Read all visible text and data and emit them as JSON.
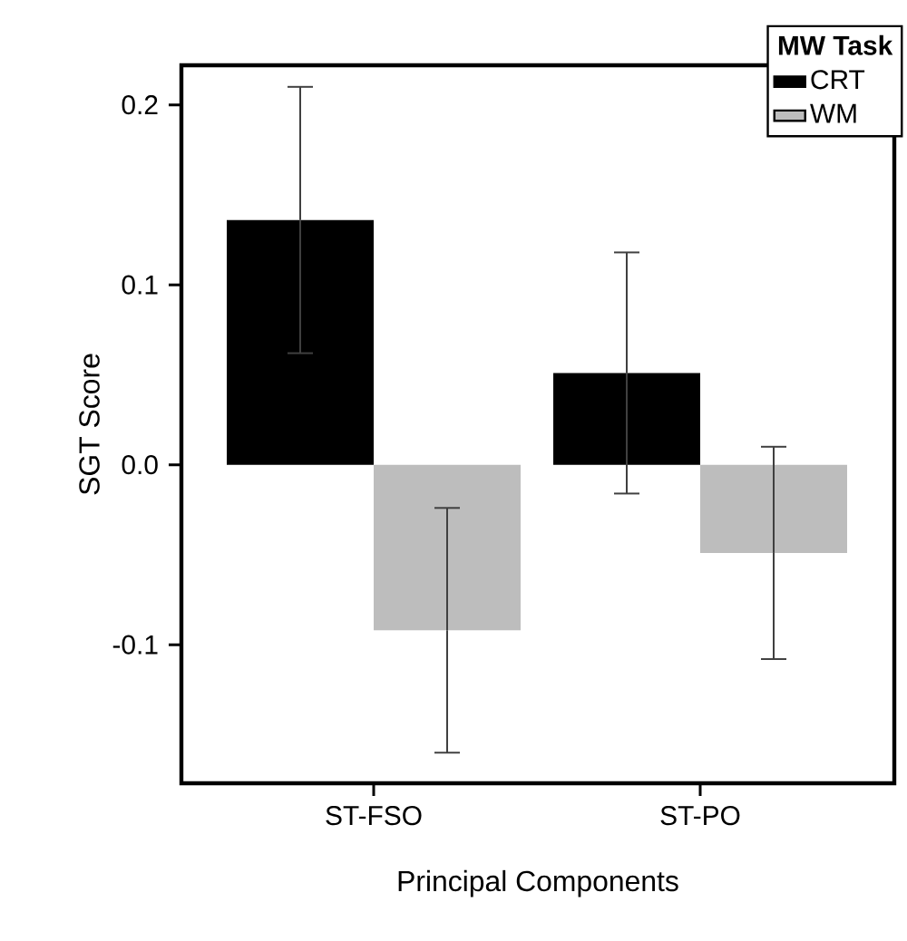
{
  "chart_data": {
    "type": "bar",
    "xlabel": "Principal Components",
    "ylabel": "SGT Score",
    "legend_title": "MW Task",
    "categories": [
      "ST-FSO",
      "ST-PO"
    ],
    "series": [
      {
        "name": "CRT",
        "color": "#000000",
        "values": [
          0.136,
          0.051
        ],
        "errors": [
          0.074,
          0.067
        ]
      },
      {
        "name": "WM",
        "color": "#bdbdbd",
        "values": [
          -0.092,
          -0.049
        ],
        "errors": [
          0.068,
          0.059
        ]
      }
    ],
    "ylim": [
      -0.177,
      0.222
    ],
    "yticks": [
      -0.1,
      {
        "value": 0,
        "label": "0.0"
      },
      0.1,
      0.2
    ],
    "legend": "top right",
    "grid": false
  }
}
